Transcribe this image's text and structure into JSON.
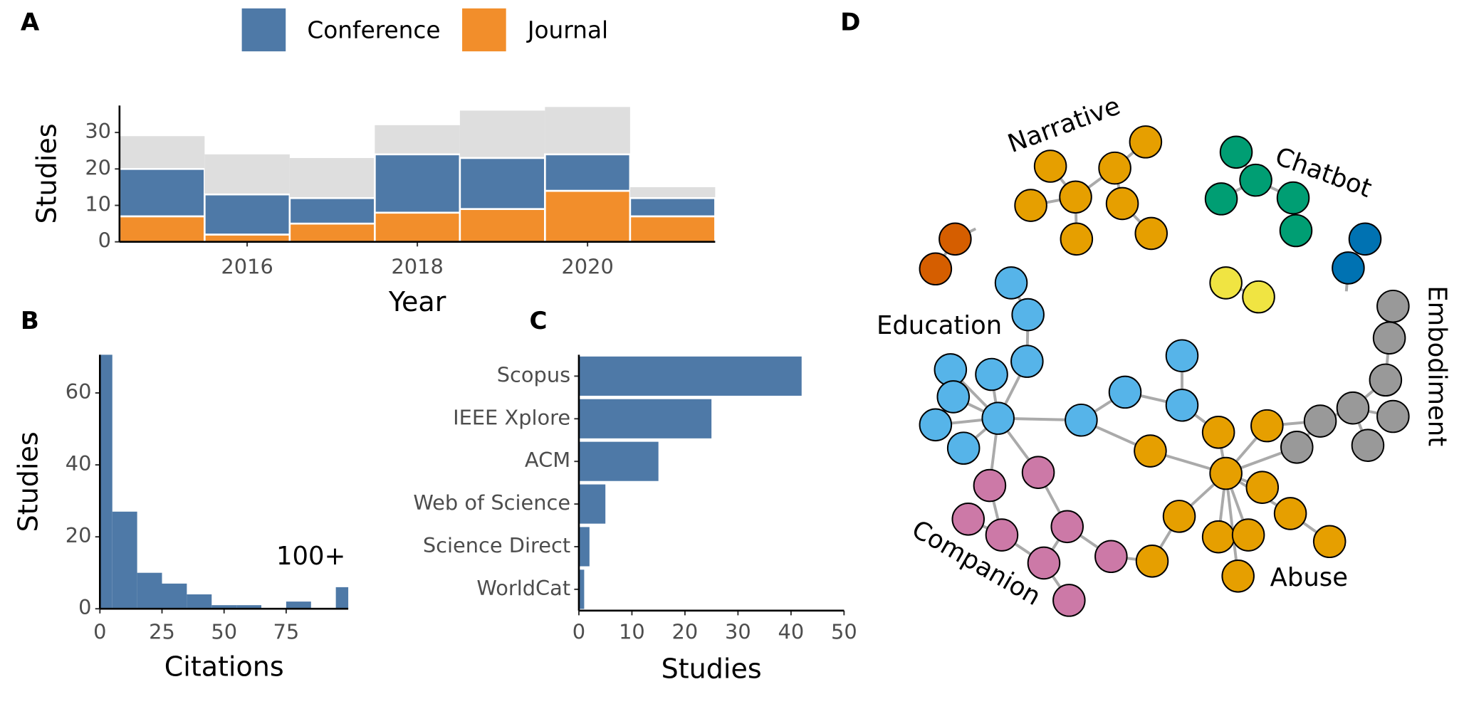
{
  "chart_data": [
    {
      "type": "bar",
      "panel_label": "A",
      "x_label": "Year",
      "y_label": "Studies",
      "x": [
        2015,
        2016,
        2017,
        2018,
        2019,
        2020,
        2021
      ],
      "xlim": [
        2014.5,
        2021.5
      ],
      "xticks": [
        2016,
        2018,
        2020
      ],
      "ylim": [
        0,
        37.4
      ],
      "yticks": [
        0,
        10,
        20,
        30
      ],
      "total_values": [
        29,
        24,
        23,
        32,
        36,
        37,
        15
      ],
      "total_color": "#dedede",
      "series": [
        {
          "name": "Conference",
          "color": "#4e79a7",
          "values": [
            13,
            11,
            7,
            16,
            14,
            10,
            5
          ]
        },
        {
          "name": "Journal",
          "color": "#f28e2b",
          "values": [
            7,
            2,
            5,
            8,
            9,
            14,
            7
          ]
        }
      ]
    },
    {
      "type": "histogram",
      "panel_label": "B",
      "x_label": "Citations",
      "y_label": "Studies",
      "bins": [
        -5,
        5,
        15,
        25,
        35,
        45,
        55,
        65,
        75,
        85,
        95,
        105
      ],
      "values": [
        75,
        27,
        10,
        7,
        4,
        1,
        1,
        0,
        2,
        0,
        6
      ],
      "color": "#4e79a7",
      "xlim": [
        0,
        100
      ],
      "xticks": [
        0,
        25,
        50,
        75
      ],
      "ylim": [
        0,
        70.6
      ],
      "yticks": [
        0,
        20,
        40,
        60
      ],
      "annotation": "100+"
    },
    {
      "type": "barh",
      "panel_label": "C",
      "x_label": "Studies",
      "categories": [
        "Scopus",
        "IEEE Xplore",
        "ACM",
        "Web of Science",
        "Science Direct",
        "WorldCat"
      ],
      "values": [
        42,
        25,
        15,
        5,
        2,
        1
      ],
      "color": "#4e79a7",
      "xlim": [
        0,
        50
      ],
      "xticks": [
        0,
        10,
        20,
        30,
        40,
        50
      ]
    }
  ],
  "diagram": {
    "panel_label": "D",
    "groups": [
      "Narrative",
      "Chatbot",
      "Embodiment",
      "Education",
      "Companion",
      "Abuse"
    ]
  }
}
